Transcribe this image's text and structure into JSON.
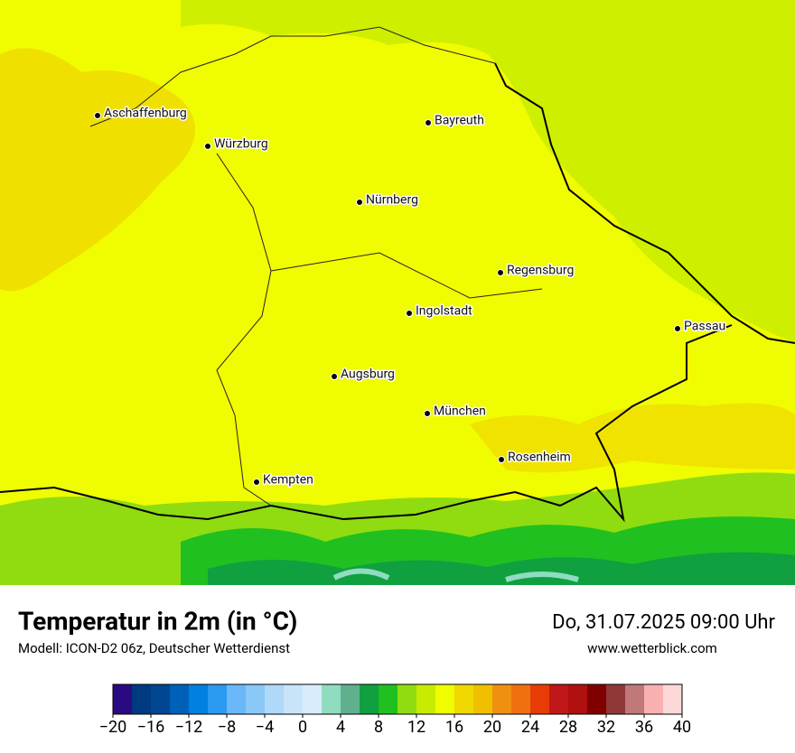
{
  "map": {
    "cities": [
      "Aschaffenburg",
      "Würzburg",
      "Bayreuth",
      "Nürnberg",
      "Regensburg",
      "Ingolstadt",
      "Passau",
      "Augsburg",
      "München",
      "Rosenheim",
      "Kempten"
    ]
  },
  "footer": {
    "title": "Temperatur in 2m (in °C)",
    "subtitle": "Modell: ICON-D2 06z, Deutscher Wetterdienst",
    "datetime": "Do, 31.07.2025 09:00 Uhr",
    "website": "www.wetterblick.com"
  },
  "colorbar": {
    "range": [
      -20,
      40
    ],
    "colors": [
      "#2a0a80",
      "#003a80",
      "#004690",
      "#0060b8",
      "#0080e0",
      "#2a9af0",
      "#6ab8f8",
      "#8ac8f8",
      "#b0d8f8",
      "#c8e4fa",
      "#d8ecfc",
      "#90dcc0",
      "#60b090",
      "#10a040",
      "#20c020",
      "#90dc10",
      "#c8ec00",
      "#f0fc00",
      "#f0d800",
      "#f0c000",
      "#f09010",
      "#f07010",
      "#e83c08",
      "#c01818",
      "#b01010",
      "#800000",
      "#903838",
      "#c07878",
      "#f8b0b0",
      "#fcd8d8"
    ],
    "ticks": [
      {
        "value": -20,
        "label": "−20"
      },
      {
        "value": -16,
        "label": "−16"
      },
      {
        "value": -12,
        "label": "−12"
      },
      {
        "value": -8,
        "label": "−8"
      },
      {
        "value": -4,
        "label": "−4"
      },
      0,
      4,
      8,
      12,
      16,
      20,
      24,
      28,
      32,
      36,
      40
    ]
  }
}
